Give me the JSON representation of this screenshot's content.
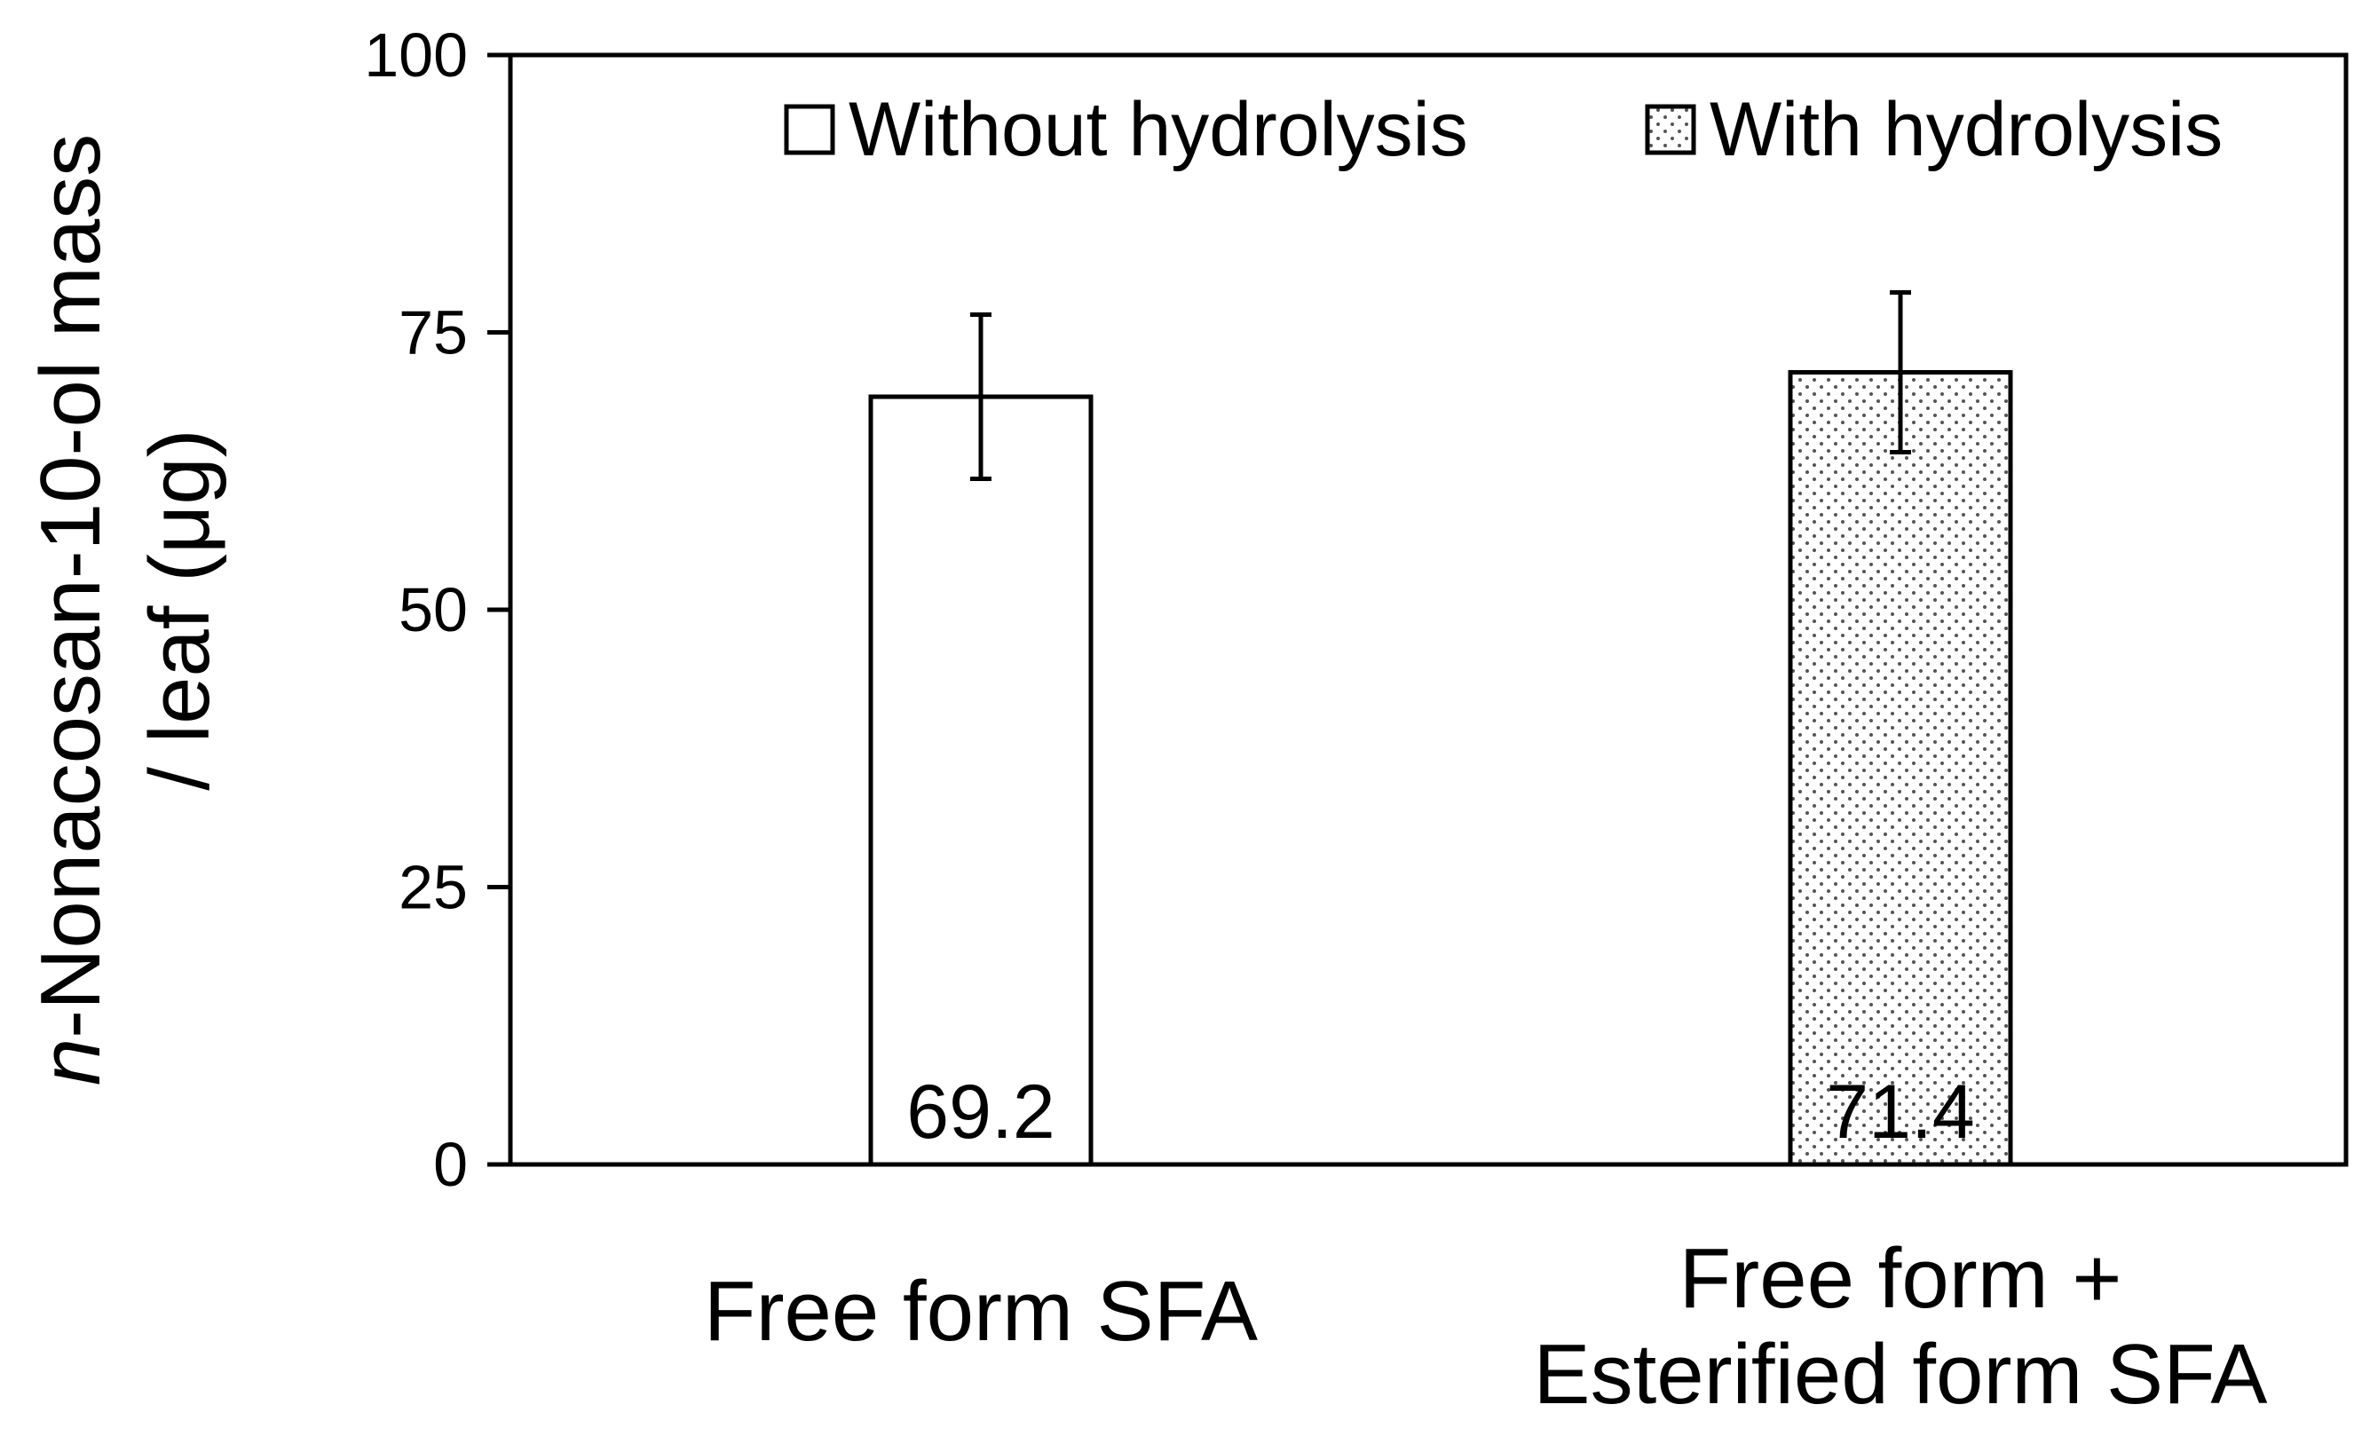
{
  "chart_data": {
    "type": "bar",
    "ylabel_italic": "n",
    "ylabel_line1": "-Nonacosan-10-ol mass",
    "ylabel_line2": "/ leaf (μg)",
    "ylim": [
      0,
      100
    ],
    "yticks": [
      0,
      25,
      50,
      75,
      100
    ],
    "grid": false,
    "legend_position": "top",
    "categories": [
      {
        "lines": [
          "Free form SFA"
        ]
      },
      {
        "lines": [
          "Free form +",
          "Esterified form SFA"
        ]
      }
    ],
    "series": [
      {
        "name": "Without hydrolysis",
        "fill": "plain",
        "value": 69.2,
        "error": 7.4,
        "category_index": 0,
        "label": "69.2"
      },
      {
        "name": "With hydrolysis",
        "fill": "dotted",
        "value": 71.4,
        "error": 7.2,
        "category_index": 1,
        "label": "71.4"
      }
    ],
    "colors": {
      "bar_fill": "#ffffff",
      "stroke": "#000000",
      "dot": "#555555"
    }
  }
}
